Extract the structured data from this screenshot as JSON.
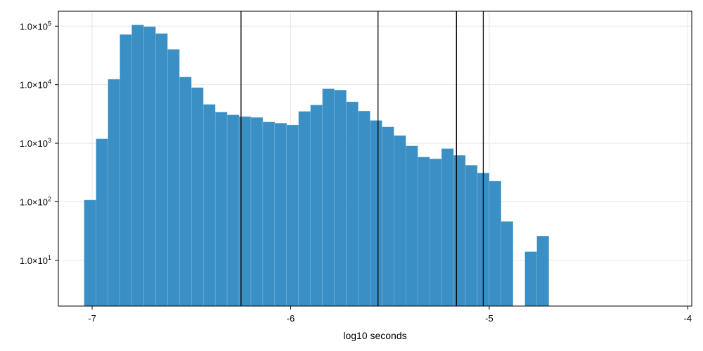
{
  "chart_data": {
    "type": "bar",
    "title": "",
    "xlabel": "log10 seconds",
    "ylabel": "",
    "yscale": "log",
    "xlim": [
      -7.17,
      -3.98
    ],
    "ylim": [
      1.65,
      180000
    ],
    "grid": true,
    "x_ticks": [
      {
        "value": -7,
        "label": "-7"
      },
      {
        "value": -6,
        "label": "-6"
      },
      {
        "value": -5,
        "label": "-5"
      },
      {
        "value": -4,
        "label": "-4"
      }
    ],
    "y_ticks": [
      {
        "value": 10,
        "mantissa": "1.0×10",
        "exp": "1"
      },
      {
        "value": 100,
        "mantissa": "1.0×10",
        "exp": "2"
      },
      {
        "value": 1000,
        "mantissa": "1.0×10",
        "exp": "3"
      },
      {
        "value": 10000,
        "mantissa": "1.0×10",
        "exp": "4"
      },
      {
        "value": 100000,
        "mantissa": "1.0×10",
        "exp": "5"
      }
    ],
    "bins": {
      "start": -7.04,
      "width": 0.06,
      "counts": [
        107,
        1190,
        12400,
        72000,
        105000,
        98000,
        75000,
        40000,
        13500,
        8900,
        4600,
        3400,
        3050,
        2850,
        2750,
        2300,
        2200,
        2050,
        3500,
        4500,
        8500,
        8100,
        5100,
        3550,
        2450,
        1900,
        1350,
        900,
        580,
        540,
        810,
        620,
        420,
        310,
        225,
        46,
        0,
        14,
        26
      ]
    },
    "vertical_lines": [
      -6.25,
      -5.56,
      -5.165,
      -5.03
    ],
    "colors": {
      "bar": "#3a8fc4",
      "bar_edge": "#8fc1e0",
      "vline": "#000000",
      "grid": "#e6e6e6",
      "frame": "#000000"
    }
  }
}
